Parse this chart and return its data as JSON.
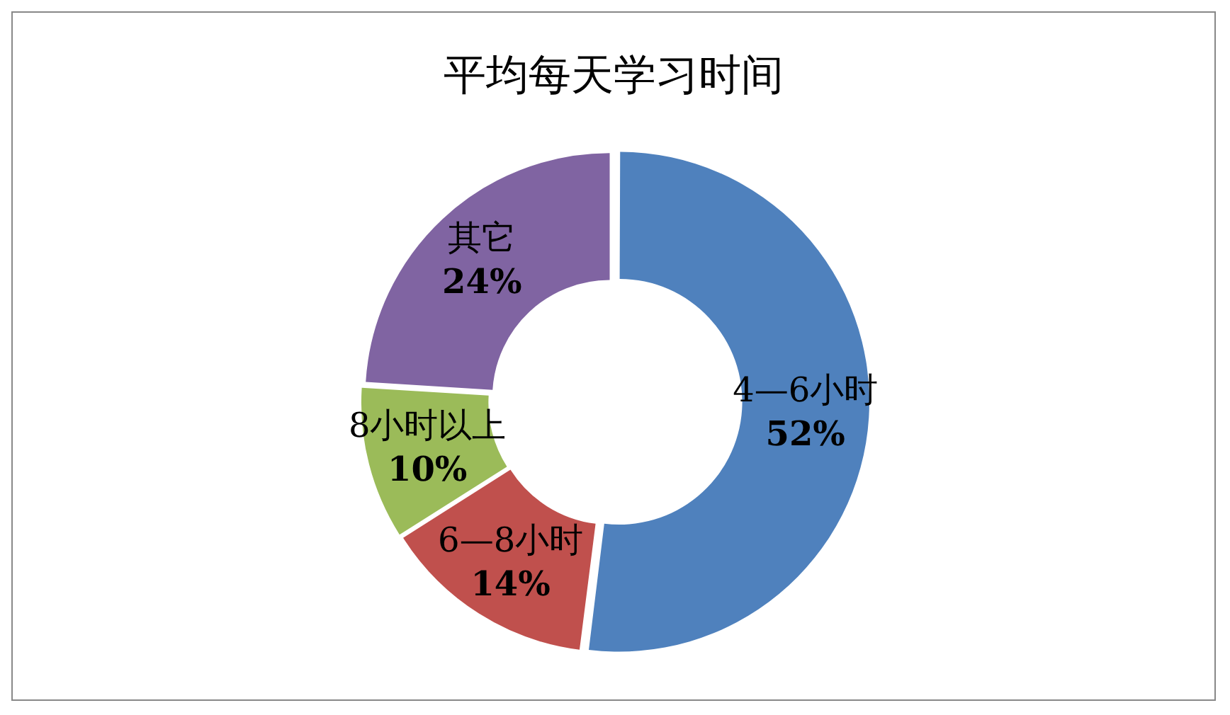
{
  "chart_data": {
    "type": "donut",
    "title": "平均每天学习时间",
    "categories": [
      "4—6小时",
      "6—8小时",
      "8小时以上",
      "其它"
    ],
    "values": [
      52,
      14,
      10,
      24
    ],
    "value_labels": [
      "52%",
      "14%",
      "10%",
      "24%"
    ],
    "colors": [
      "#4f81bd",
      "#c0504d",
      "#9bbb59",
      "#8064a2"
    ],
    "legend": false
  }
}
